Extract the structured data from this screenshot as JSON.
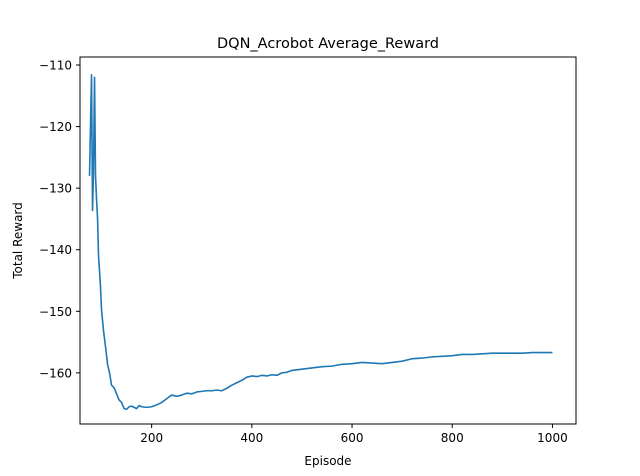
{
  "chart_data": {
    "type": "line",
    "title": "DQN_Acrobot Average_Reward",
    "xlabel": "Episode",
    "ylabel": "Total Reward",
    "xlim": [
      57,
      1047
    ],
    "ylim": [
      -168.3,
      -108.7
    ],
    "xticks": [
      200,
      400,
      600,
      800,
      1000
    ],
    "xtick_labels": [
      "200",
      "400",
      "600",
      "800",
      "1000"
    ],
    "yticks": [
      -160,
      -150,
      -140,
      -130,
      -120,
      -110
    ],
    "ytick_labels": [
      "−160",
      "−150",
      "−140",
      "−130",
      "−120",
      "−110"
    ],
    "grid": false,
    "series": [
      {
        "color": "#1f77b4",
        "x": [
          76,
          80,
          82,
          84,
          86,
          88,
          90,
          92,
          94,
          96,
          98,
          100,
          104,
          108,
          112,
          116,
          120,
          125,
          130,
          135,
          140,
          145,
          150,
          155,
          160,
          165,
          170,
          175,
          180,
          190,
          200,
          210,
          220,
          230,
          240,
          250,
          260,
          270,
          280,
          290,
          300,
          310,
          320,
          330,
          340,
          350,
          360,
          370,
          380,
          390,
          400,
          410,
          420,
          430,
          440,
          450,
          460,
          470,
          480,
          490,
          500,
          520,
          540,
          560,
          580,
          600,
          620,
          640,
          660,
          680,
          700,
          720,
          740,
          760,
          780,
          800,
          820,
          840,
          860,
          880,
          900,
          920,
          940,
          960,
          980,
          1000
        ],
        "y": [
          -128.0,
          -111.6,
          -133.6,
          -127.0,
          -112.0,
          -128.0,
          -131.8,
          -134.8,
          -141.0,
          -143.5,
          -146.2,
          -149.8,
          -153.2,
          -155.8,
          -158.6,
          -160.0,
          -162.0,
          -162.4,
          -163.4,
          -164.4,
          -164.8,
          -165.8,
          -165.9,
          -165.5,
          -165.4,
          -165.6,
          -165.8,
          -165.3,
          -165.5,
          -165.6,
          -165.5,
          -165.2,
          -164.8,
          -164.2,
          -163.6,
          -163.8,
          -163.6,
          -163.3,
          -163.4,
          -163.1,
          -163.0,
          -162.9,
          -162.9,
          -162.8,
          -162.9,
          -162.5,
          -162.0,
          -161.6,
          -161.2,
          -160.7,
          -160.5,
          -160.6,
          -160.4,
          -160.5,
          -160.3,
          -160.4,
          -160.0,
          -159.9,
          -159.6,
          -159.5,
          -159.4,
          -159.2,
          -159.0,
          -158.9,
          -158.6,
          -158.5,
          -158.3,
          -158.4,
          -158.5,
          -158.3,
          -158.1,
          -157.7,
          -157.6,
          -157.4,
          -157.3,
          -157.2,
          -157.0,
          -157.0,
          -156.9,
          -156.8,
          -156.8,
          -156.8,
          -156.8,
          -156.7,
          -156.7,
          -156.7
        ]
      }
    ]
  }
}
